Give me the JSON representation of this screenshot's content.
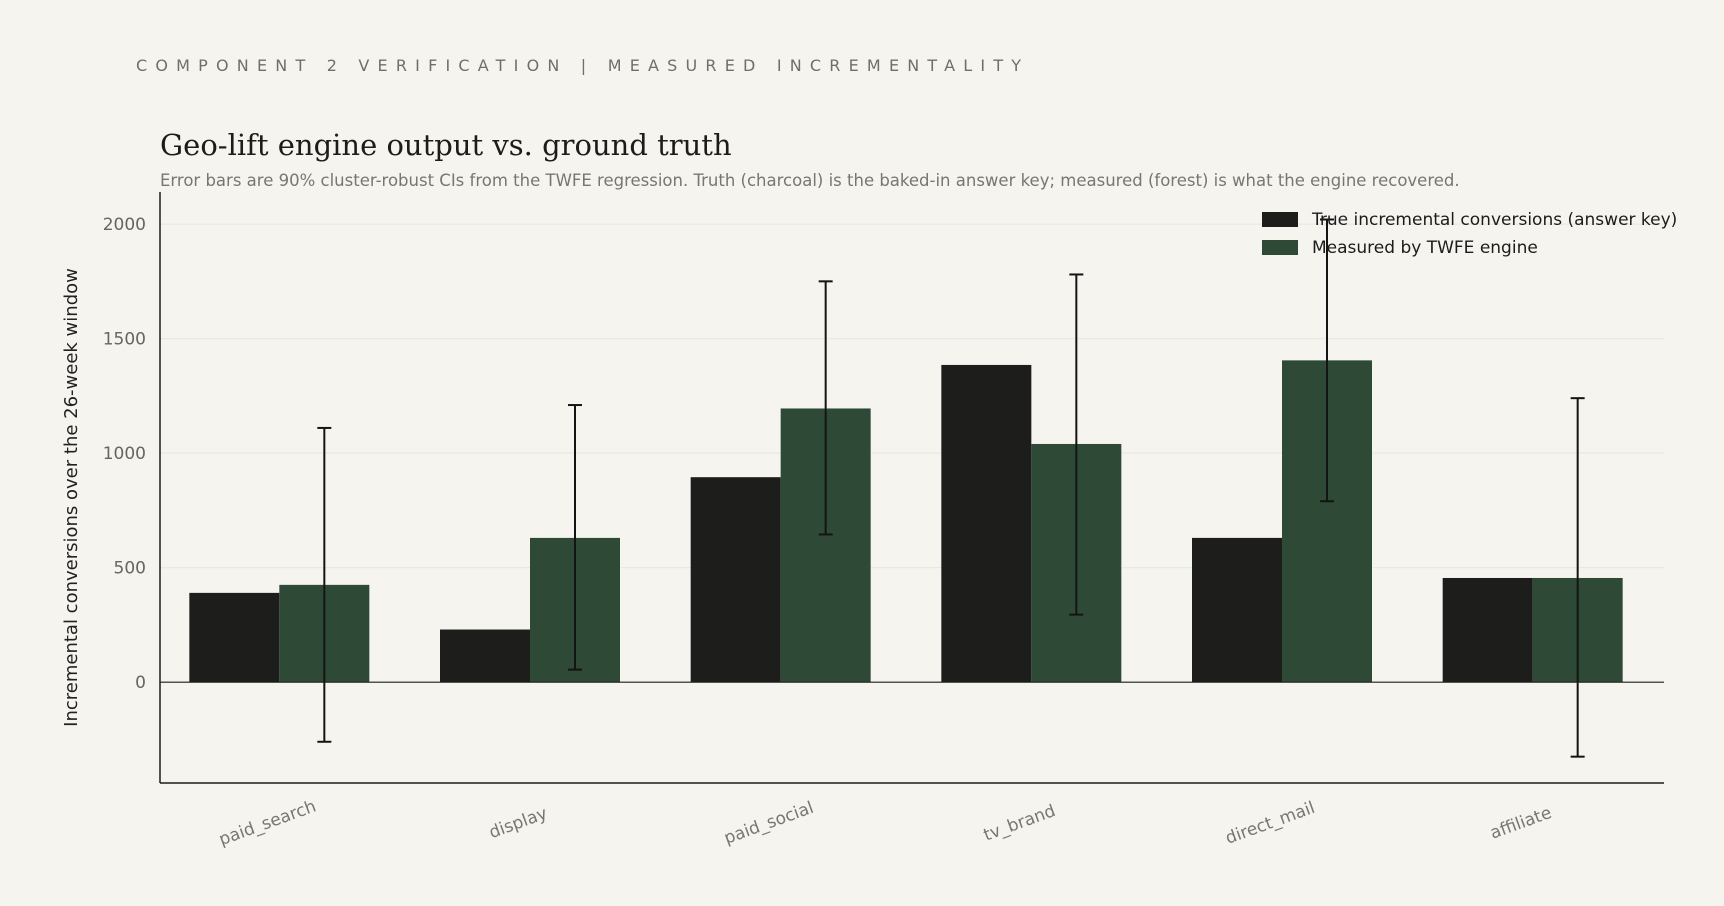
{
  "header": {
    "kicker": "COMPONENT 2 VERIFICATION | MEASURED INCREMENTALITY"
  },
  "chart_data": {
    "type": "bar",
    "title": "Geo-lift engine output vs. ground truth",
    "subtitle": "Error bars are 90% cluster-robust CIs from the TWFE regression. Truth (charcoal) is the baked-in answer key; measured (forest) is what the engine recovered.",
    "xlabel": "",
    "ylabel": "Incremental conversions over the 26-week window",
    "ylim": [
      -440,
      2140
    ],
    "yticks": [
      0,
      500,
      1000,
      1500,
      2000
    ],
    "grid": true,
    "legend_position": "top-right",
    "categories": [
      "paid_search",
      "display",
      "paid_social",
      "tv_brand",
      "direct_mail",
      "affiliate"
    ],
    "series": [
      {
        "name": "True incremental conversions (answer key)",
        "color": "#1d1d1b",
        "values": [
          390,
          230,
          895,
          1385,
          630,
          455
        ]
      },
      {
        "name": "Measured by TWFE engine",
        "color": "#2e4a37",
        "values": [
          425,
          630,
          1195,
          1040,
          1405,
          455
        ],
        "ci_low": [
          -260,
          55,
          645,
          295,
          790,
          -325
        ],
        "ci_high": [
          1110,
          1210,
          1750,
          1780,
          2020,
          1240
        ]
      }
    ]
  }
}
